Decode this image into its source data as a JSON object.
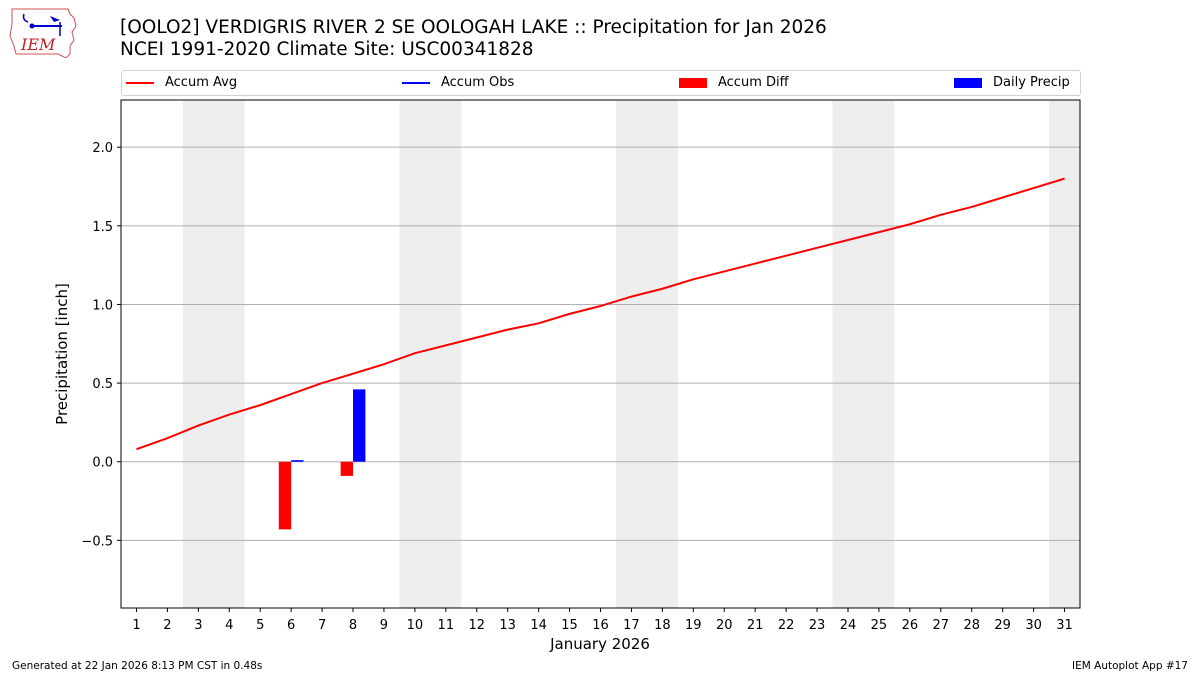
{
  "header": {
    "title_line1": "[OOLO2] VERDIGRIS RIVER 2 SE OOLOGAH LAKE :: Precipitation for Jan 2026",
    "title_line2": "NCEI 1991-2020 Climate Site: USC00341828",
    "logo_text": "IEM"
  },
  "legend": {
    "items": [
      {
        "label": "Accum Avg",
        "type": "line",
        "color": "#ff0000"
      },
      {
        "label": "Accum Obs",
        "type": "line",
        "color": "#0000ff"
      },
      {
        "label": "Accum Diff",
        "type": "patch",
        "color": "#ff0000"
      },
      {
        "label": "Daily Precip",
        "type": "patch",
        "color": "#0000ff"
      }
    ]
  },
  "footer": {
    "generated": "Generated at 22 Jan 2026 8:13 PM CST in 0.48s",
    "app": "IEM Autoplot App #17"
  },
  "colors": {
    "avg": "#ff0000",
    "obs": "#0000ff",
    "diff": "#ff0000",
    "daily": "#0000ff",
    "weekend": "#eeeeee",
    "grid": "#b0b0b0"
  },
  "chart_data": {
    "type": "line",
    "title": "[OOLO2] VERDIGRIS RIVER 2 SE OOLOGAH LAKE :: Precipitation for Jan 2026",
    "subtitle": "NCEI 1991-2020 Climate Site: USC00341828",
    "xlabel": "January 2026",
    "ylabel": "Precipitation [inch]",
    "ylim": [
      -0.93,
      2.3
    ],
    "xlim": [
      0.5,
      31.5
    ],
    "yticks": [
      -0.5,
      0.0,
      0.5,
      1.0,
      1.5,
      2.0
    ],
    "ytick_labels": [
      "−0.5",
      "0.0",
      "0.5",
      "1.0",
      "1.5",
      "2.0"
    ],
    "x": [
      1,
      2,
      3,
      4,
      5,
      6,
      7,
      8,
      9,
      10,
      11,
      12,
      13,
      14,
      15,
      16,
      17,
      18,
      19,
      20,
      21,
      22,
      23,
      24,
      25,
      26,
      27,
      28,
      29,
      30,
      31
    ],
    "grid": "horizontal",
    "legend_position": "top",
    "weekend_shading": [
      [
        2.5,
        4.5
      ],
      [
        9.5,
        11.5
      ],
      [
        16.5,
        18.5
      ],
      [
        23.5,
        25.5
      ],
      [
        30.5,
        31.5
      ]
    ],
    "series": [
      {
        "name": "Accum Avg",
        "type": "line",
        "color": "#ff0000",
        "values": [
          0.08,
          0.15,
          0.23,
          0.3,
          0.36,
          0.43,
          0.5,
          0.56,
          0.62,
          0.69,
          0.74,
          0.79,
          0.84,
          0.88,
          0.94,
          0.99,
          1.05,
          1.1,
          1.16,
          1.21,
          1.26,
          1.31,
          1.36,
          1.41,
          1.46,
          1.51,
          1.57,
          1.62,
          1.68,
          1.74,
          1.8
        ]
      },
      {
        "name": "Accum Obs",
        "type": "line",
        "color": "#0000ff",
        "values": []
      },
      {
        "name": "Accum Diff",
        "type": "bar",
        "color": "#ff0000",
        "points": [
          {
            "x": 6,
            "value": -0.43
          },
          {
            "x": 8,
            "value": -0.09
          }
        ]
      },
      {
        "name": "Daily Precip",
        "type": "bar",
        "color": "#0000ff",
        "points": [
          {
            "x": 6,
            "value": 0.01
          },
          {
            "x": 8,
            "value": 0.46
          }
        ]
      }
    ]
  }
}
